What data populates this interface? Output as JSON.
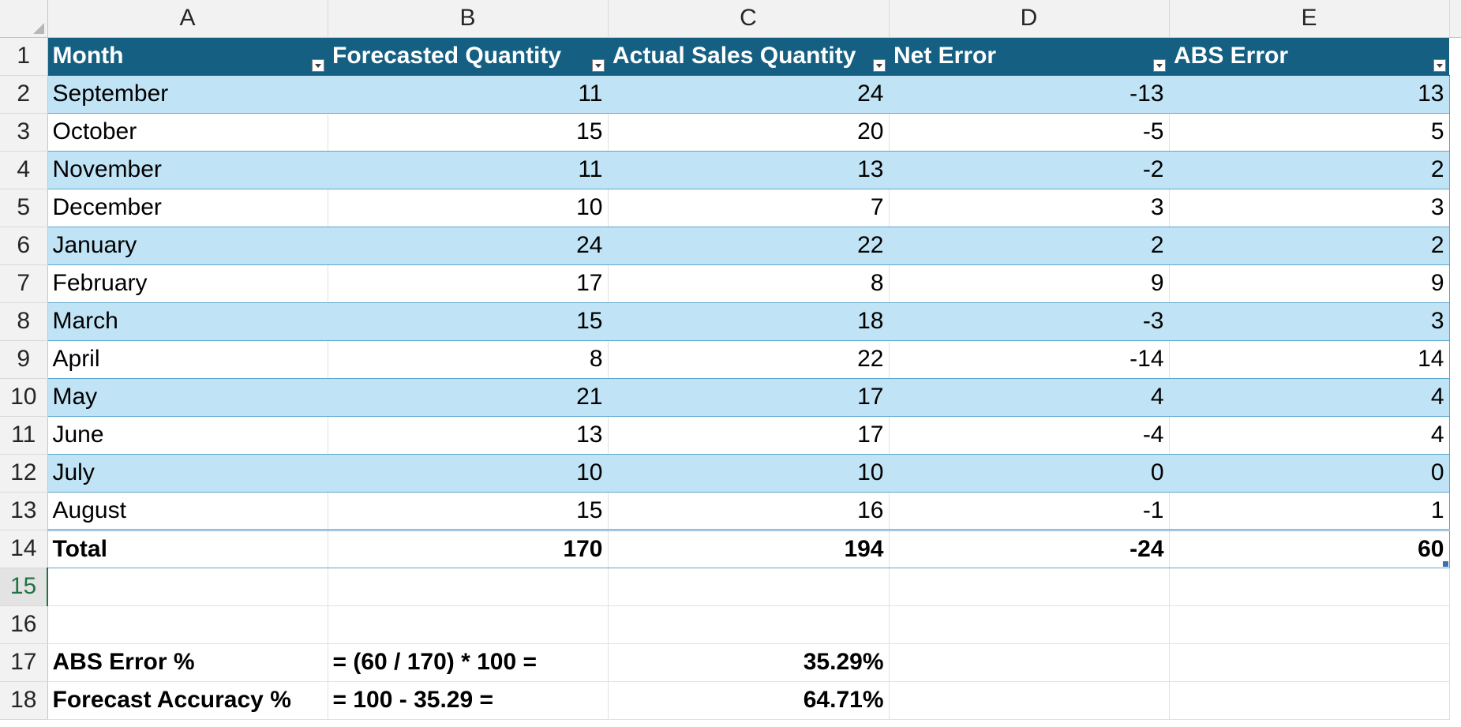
{
  "sheet": {
    "column_headers": [
      "A",
      "B",
      "C",
      "D",
      "E"
    ],
    "table_headers": [
      "Month",
      "Forecasted Quantity",
      "Actual Sales Quantity",
      "Net Error",
      "ABS Error"
    ],
    "rows": [
      [
        "September",
        "11",
        "24",
        "-13",
        "13"
      ],
      [
        "October",
        "15",
        "20",
        "-5",
        "5"
      ],
      [
        "November",
        "11",
        "13",
        "-2",
        "2"
      ],
      [
        "December",
        "10",
        "7",
        "3",
        "3"
      ],
      [
        "January",
        "24",
        "22",
        "2",
        "2"
      ],
      [
        "February",
        "17",
        "8",
        "9",
        "9"
      ],
      [
        "March",
        "15",
        "18",
        "-3",
        "3"
      ],
      [
        "April",
        "8",
        "22",
        "-14",
        "14"
      ],
      [
        "May",
        "21",
        "17",
        "4",
        "4"
      ],
      [
        "June",
        "13",
        "17",
        "-4",
        "4"
      ],
      [
        "July",
        "10",
        "10",
        "0",
        "0"
      ],
      [
        "August",
        "15",
        "16",
        "-1",
        "1"
      ]
    ],
    "total_row": [
      "Total",
      "170",
      "194",
      "-24",
      "60"
    ],
    "abs_error_row": [
      "ABS Error %",
      "= (60 / 170) * 100 =",
      "35.29%"
    ],
    "accuracy_row": [
      "Forecast Accuracy %",
      "= 100 - 35.29 =",
      "64.71%"
    ],
    "row_numbers": [
      "1",
      "2",
      "3",
      "4",
      "5",
      "6",
      "7",
      "8",
      "9",
      "10",
      "11",
      "12",
      "13",
      "14",
      "15",
      "16",
      "17",
      "18"
    ],
    "selected_row": "15"
  },
  "colors": {
    "header_fill": "#156082",
    "band_fill": "#c0e4f5",
    "band_border": "#5ea6d0",
    "selection_green": "#217346"
  }
}
